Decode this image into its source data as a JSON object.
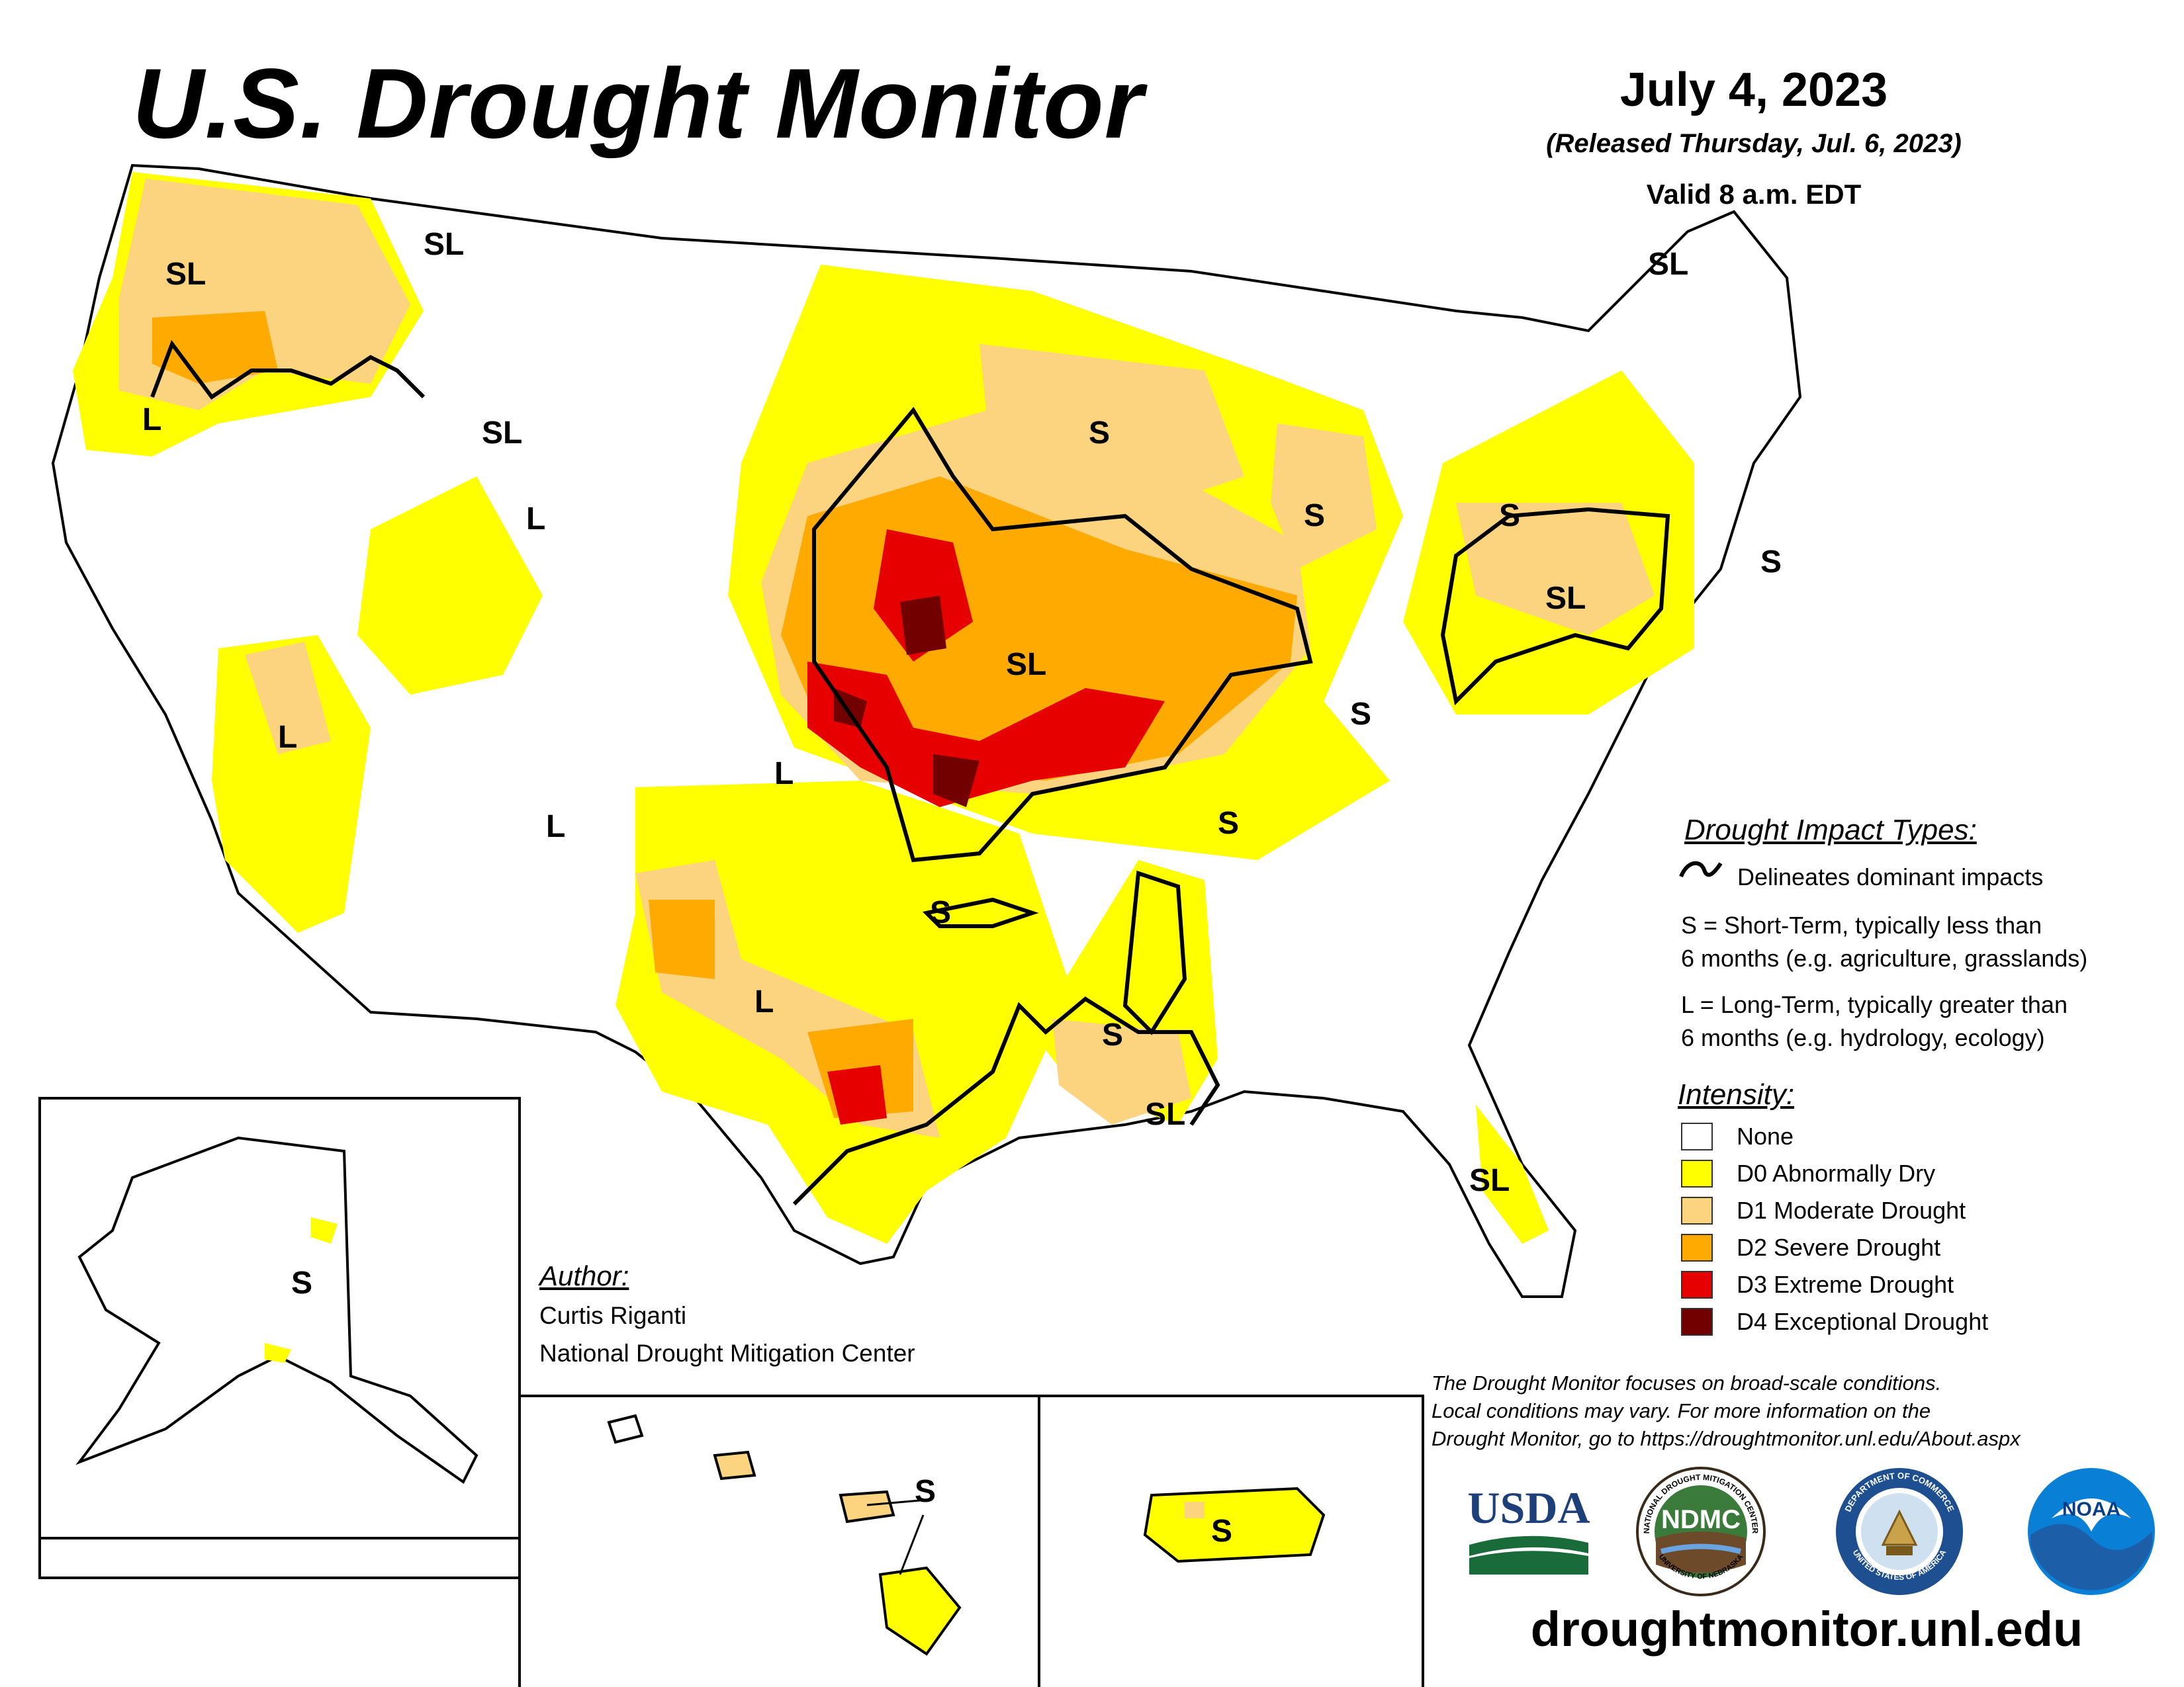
{
  "header": {
    "title": "U.S. Drought Monitor",
    "date": "July 4, 2023",
    "released": "(Released Thursday, Jul. 6, 2023)",
    "valid": "Valid 8 a.m. EDT"
  },
  "impact_legend": {
    "heading": "Drought Impact Types:",
    "delineates": "Delineates dominant impacts",
    "short_term_line1": "S = Short-Term, typically less than",
    "short_term_line2": "6 months (e.g. agriculture, grasslands)",
    "long_term_line1": "L = Long-Term, typically greater than",
    "long_term_line2": "6 months (e.g. hydrology, ecology)"
  },
  "intensity_legend": {
    "heading": "Intensity:",
    "items": [
      {
        "label": "None",
        "color": "#ffffff"
      },
      {
        "label": "D0 Abnormally Dry",
        "color": "#ffff00"
      },
      {
        "label": "D1 Moderate Drought",
        "color": "#fcd37f"
      },
      {
        "label": "D2 Severe Drought",
        "color": "#ffaa00"
      },
      {
        "label": "D3 Extreme Drought",
        "color": "#e60000"
      },
      {
        "label": "D4 Exceptional Drought",
        "color": "#730000"
      }
    ]
  },
  "author": {
    "heading": "Author:",
    "name": "Curtis Riganti",
    "organization": "National Drought Mitigation Center"
  },
  "disclaimer": {
    "line1": "The Drought Monitor focuses on broad-scale conditions.",
    "line2": "Local conditions may vary. For more information on the",
    "line3": "Drought Monitor, go to https://droughtmonitor.unl.edu/About.aspx"
  },
  "logos": {
    "usda": "USDA",
    "ndmc": "NDMC",
    "ndmc_ring_top": "NATIONAL DROUGHT MITIGATION CENTER",
    "ndmc_ring_bottom": "UNIVERSITY OF NEBRASKA",
    "commerce_ring_top": "DEPARTMENT OF COMMERCE",
    "commerce_ring_bottom": "UNITED STATES OF AMERICA",
    "noaa": "NOAA"
  },
  "website": "droughtmonitor.unl.edu",
  "map_labels": {
    "sl": "SL",
    "s": "S",
    "l": "L"
  }
}
